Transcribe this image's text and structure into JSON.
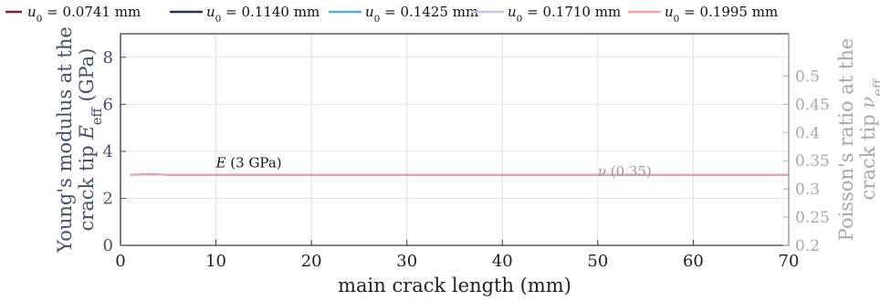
{
  "chart_data": {
    "type": "line",
    "xlabel": "main crack length (mm)",
    "ylabel_left": [
      "Young's modulus at the",
      "crack tip E_eff (GPa)"
    ],
    "ylabel_right": [
      "Poisson's ratio at the",
      "crack tip ν_eff"
    ],
    "xlim": [
      0,
      70
    ],
    "ylim_left": [
      0,
      9
    ],
    "ylim_right": [
      0.2,
      0.575
    ],
    "x_ticks": [
      0,
      10,
      20,
      30,
      40,
      50,
      60,
      70
    ],
    "y_ticks_left": [
      0,
      2,
      4,
      6,
      8
    ],
    "y_ticks_right": [
      0.2,
      0.25,
      0.3,
      0.35,
      0.4,
      0.45,
      0.5
    ],
    "grid": true,
    "legend_position": "top",
    "series": [
      {
        "name": "u_0 = 0.0741 mm",
        "color": "#7a1f3d",
        "x": [
          1,
          3,
          5,
          10,
          20,
          30,
          40,
          50,
          60,
          70
        ],
        "y": [
          3.0,
          3.02,
          3.0,
          3.0,
          3.0,
          3.0,
          3.0,
          3.0,
          3.0,
          3.0
        ]
      },
      {
        "name": "u_0 = 0.1140 mm",
        "color": "#2b3553",
        "x": [
          1,
          3,
          5,
          10,
          20,
          30,
          40,
          50,
          60,
          70
        ],
        "y": [
          3.0,
          3.03,
          3.0,
          3.0,
          3.0,
          3.0,
          3.0,
          3.0,
          3.0,
          3.0
        ]
      },
      {
        "name": "u_0 = 0.1425 mm",
        "color": "#5aaed6",
        "x": [
          1,
          2,
          3,
          5,
          10,
          20,
          30,
          40,
          50,
          60,
          70
        ],
        "y": [
          3.0,
          3.02,
          3.04,
          3.0,
          3.0,
          3.0,
          3.0,
          3.0,
          3.0,
          3.0,
          3.0
        ]
      },
      {
        "name": "u_0 = 0.1710 mm",
        "color": "#c9c8ea",
        "x": [
          1,
          3,
          5,
          10,
          20,
          30,
          40,
          50,
          60,
          70
        ],
        "y": [
          3.0,
          3.01,
          3.0,
          3.0,
          3.0,
          3.0,
          3.0,
          3.0,
          3.0,
          3.0
        ]
      },
      {
        "name": "u_0 = 0.1995 mm",
        "color": "#f2a3ad",
        "x": [
          1,
          3,
          5,
          10,
          20,
          30,
          40,
          50,
          60,
          70
        ],
        "y": [
          3.0,
          3.0,
          3.0,
          3.0,
          3.0,
          3.0,
          3.0,
          3.0,
          3.0,
          3.0
        ]
      }
    ],
    "annotations": [
      {
        "text": "E (3 GPa)",
        "x": 10,
        "y": 3.0,
        "axis": "left"
      },
      {
        "text": "ν (0.35)",
        "x": 50,
        "y": 0.35,
        "axis": "right"
      }
    ]
  },
  "colors": {
    "left_axis": "#44506a",
    "right_axis": "#a8a8a8",
    "grid": "#e2e2e2"
  }
}
